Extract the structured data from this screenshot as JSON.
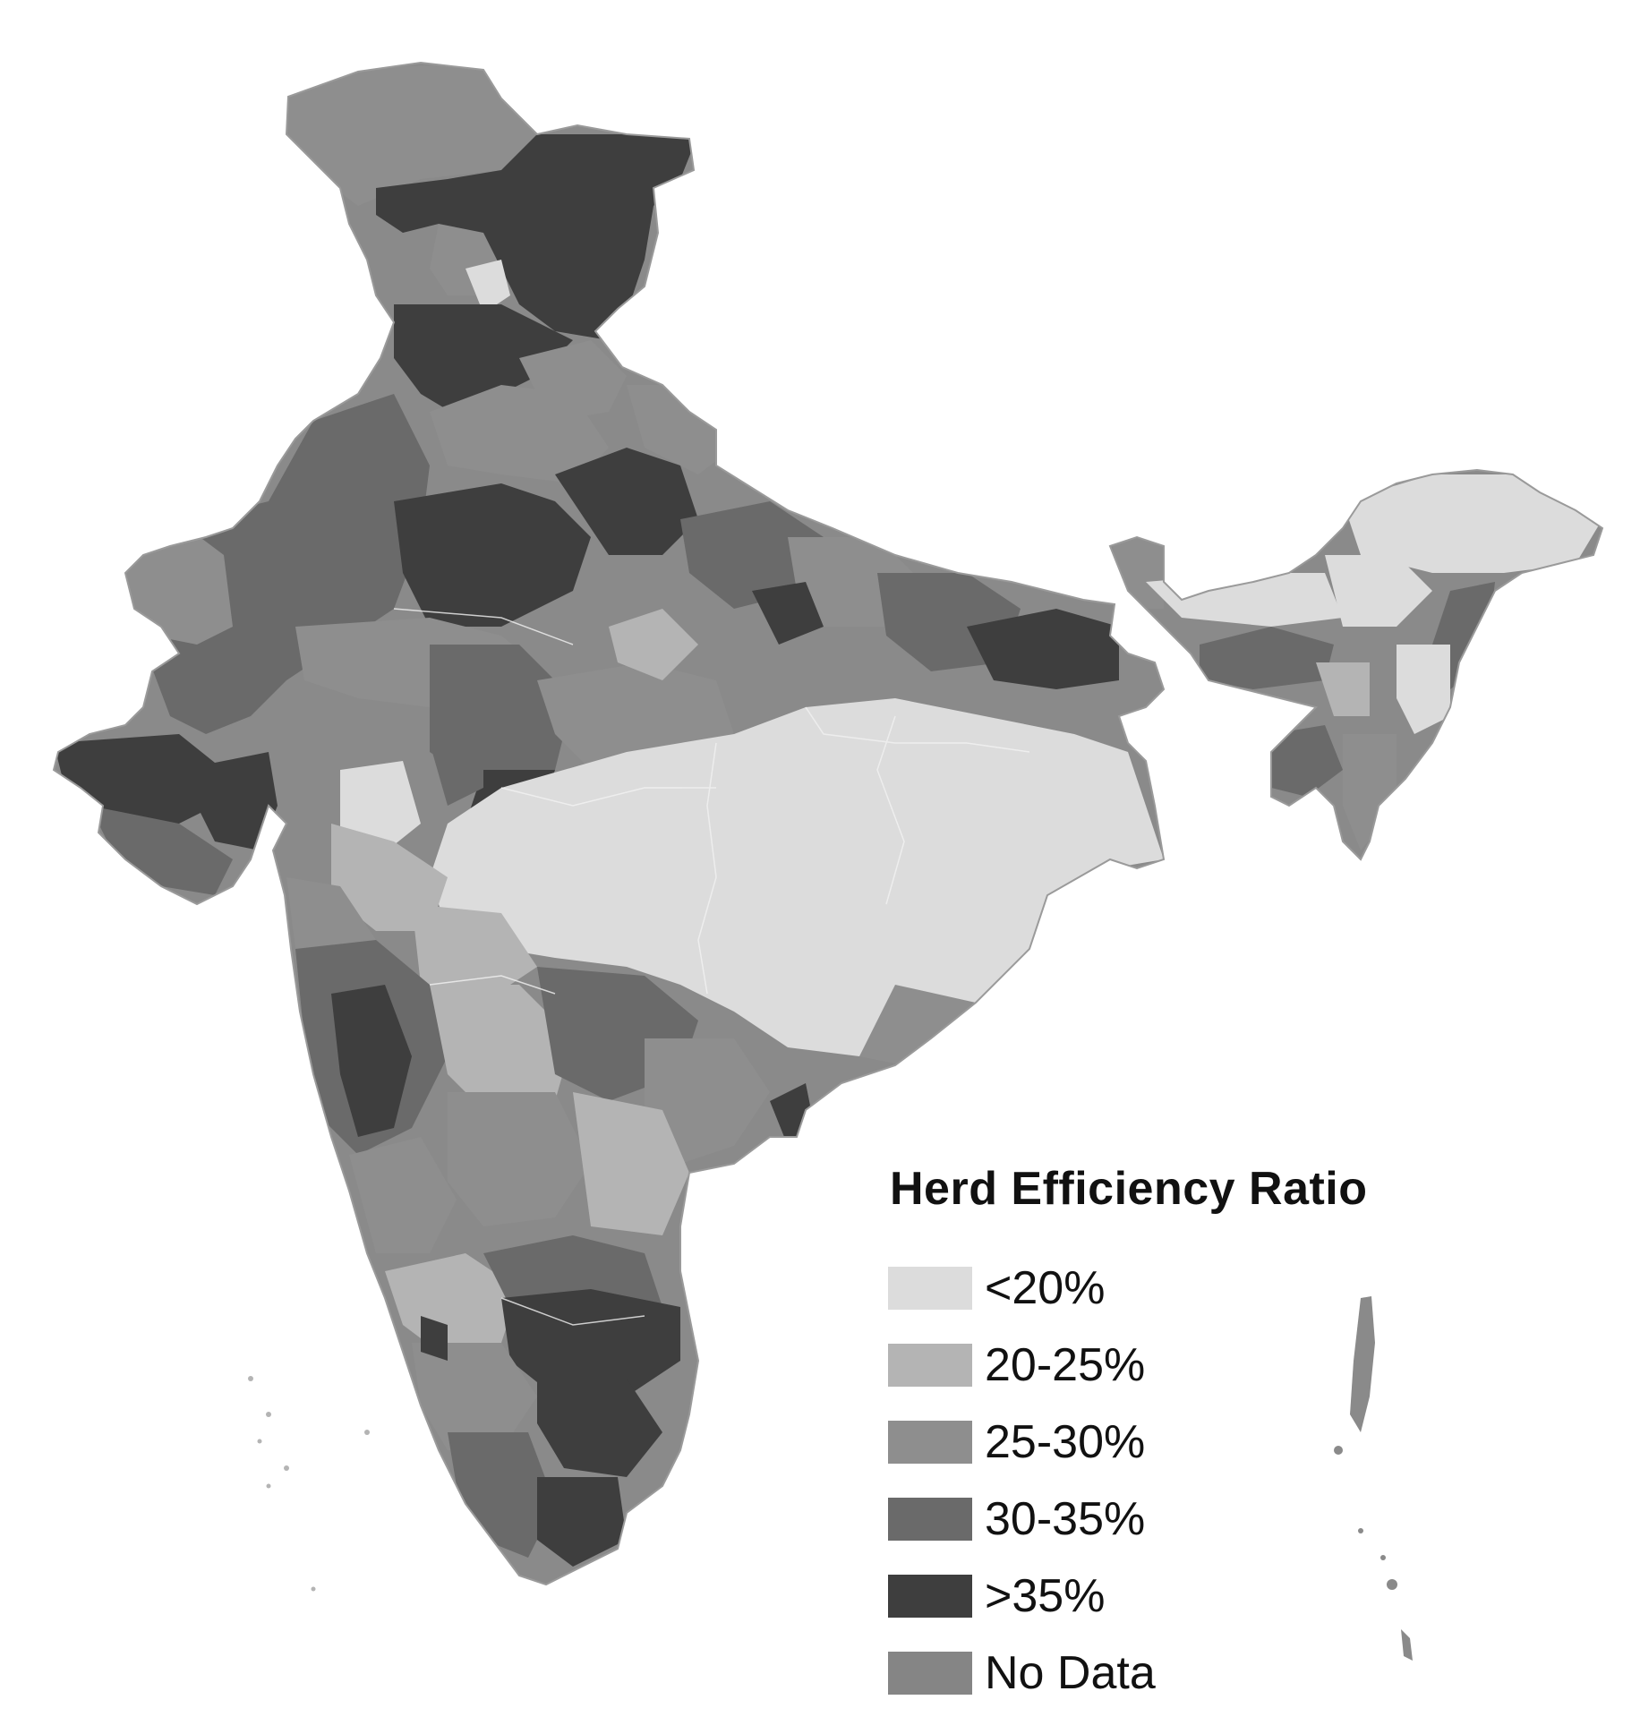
{
  "legend": {
    "title": "Herd Efficiency Ratio",
    "classes": [
      {
        "label": "<20%",
        "color": "#dcdcdc"
      },
      {
        "label": "20-25%",
        "color": "#b4b4b4"
      },
      {
        "label": "25-30%",
        "color": "#8e8e8e"
      },
      {
        "label": "30-35%",
        "color": "#6a6a6a"
      },
      {
        "label": ">35%",
        "color": "#3e3e3e"
      },
      {
        "label": "No Data",
        "color": "#858585"
      }
    ]
  },
  "colors": {
    "background": "#ffffff",
    "boundary": "#f2f2f2",
    "outline": "#9a9a9a"
  }
}
